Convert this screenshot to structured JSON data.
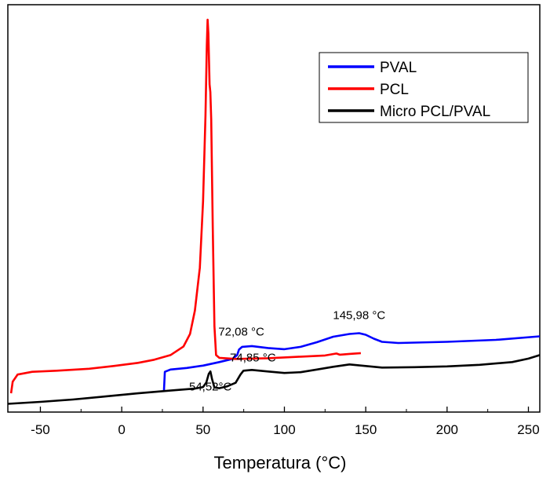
{
  "chart_data": {
    "type": "line",
    "xlabel": "Temperatura (°C)",
    "xlim": [
      -70,
      257
    ],
    "ylim": [
      0,
      100
    ],
    "x_ticks": [
      -50,
      0,
      50,
      100,
      150,
      200,
      250
    ],
    "x_tick_labels": [
      "-50",
      "0",
      "50",
      "100",
      "150",
      "200",
      "250"
    ],
    "y_ticks_labeled": false,
    "grid": false,
    "legend_position": "top-right",
    "series": [
      {
        "name": "PVAL",
        "color": "#0000ff",
        "points": [
          [
            26,
            3.6
          ],
          [
            26.5,
            8.3
          ],
          [
            30,
            8.9
          ],
          [
            40,
            9.3
          ],
          [
            50,
            9.9
          ],
          [
            60,
            10.8
          ],
          [
            68,
            11.6
          ],
          [
            71,
            12.6
          ],
          [
            72.08,
            14.0
          ],
          [
            74,
            14.7
          ],
          [
            80,
            14.9
          ],
          [
            90,
            14.4
          ],
          [
            100,
            14.1
          ],
          [
            110,
            14.7
          ],
          [
            120,
            15.9
          ],
          [
            130,
            17.3
          ],
          [
            140,
            18.0
          ],
          [
            145.98,
            18.2
          ],
          [
            150,
            17.8
          ],
          [
            155,
            16.8
          ],
          [
            160,
            16.0
          ],
          [
            170,
            15.7
          ],
          [
            200,
            16.0
          ],
          [
            230,
            16.5
          ],
          [
            257,
            17.4
          ]
        ]
      },
      {
        "name": "PCL",
        "color": "#ff0000",
        "points": [
          [
            -68,
            2.8
          ],
          [
            -67,
            5.8
          ],
          [
            -64,
            7.6
          ],
          [
            -55,
            8.3
          ],
          [
            -40,
            8.6
          ],
          [
            -20,
            9.1
          ],
          [
            -5,
            9.8
          ],
          [
            10,
            10.6
          ],
          [
            20,
            11.4
          ],
          [
            30,
            12.6
          ],
          [
            38,
            14.8
          ],
          [
            42,
            18.0
          ],
          [
            45,
            24.0
          ],
          [
            48,
            35.0
          ],
          [
            50,
            52.0
          ],
          [
            51.5,
            74.0
          ],
          [
            52.3,
            92.0
          ],
          [
            52.8,
            98.6
          ],
          [
            53.3,
            95.0
          ],
          [
            54,
            82.0
          ],
          [
            54.5,
            80.0
          ],
          [
            55,
            73.0
          ],
          [
            56,
            45.0
          ],
          [
            57,
            20.0
          ],
          [
            58,
            12.6
          ],
          [
            60,
            11.9
          ],
          [
            70,
            11.6
          ],
          [
            90,
            11.8
          ],
          [
            110,
            12.2
          ],
          [
            125,
            12.5
          ],
          [
            132,
            13.0
          ],
          [
            134,
            12.7
          ],
          [
            140,
            12.9
          ],
          [
            147,
            13.1
          ]
        ]
      },
      {
        "name": "Micro PCL/PVAL",
        "color": "#000000",
        "points": [
          [
            -70,
            0.1
          ],
          [
            -50,
            0.6
          ],
          [
            -30,
            1.2
          ],
          [
            -10,
            2.0
          ],
          [
            10,
            2.8
          ],
          [
            30,
            3.5
          ],
          [
            45,
            4.0
          ],
          [
            50,
            4.4
          ],
          [
            52,
            5.6
          ],
          [
            53.5,
            7.8
          ],
          [
            54.52,
            8.4
          ],
          [
            55.5,
            6.5
          ],
          [
            57,
            4.3
          ],
          [
            60,
            4.1
          ],
          [
            65,
            4.6
          ],
          [
            70,
            5.5
          ],
          [
            73,
            7.6
          ],
          [
            74.85,
            8.6
          ],
          [
            80,
            8.8
          ],
          [
            90,
            8.4
          ],
          [
            100,
            8.0
          ],
          [
            110,
            8.2
          ],
          [
            120,
            8.9
          ],
          [
            130,
            9.6
          ],
          [
            140,
            10.2
          ],
          [
            150,
            9.8
          ],
          [
            160,
            9.4
          ],
          [
            180,
            9.5
          ],
          [
            200,
            9.7
          ],
          [
            220,
            10.1
          ],
          [
            240,
            10.8
          ],
          [
            250,
            11.7
          ],
          [
            257,
            12.6
          ]
        ]
      }
    ],
    "annotations": [
      {
        "text": "72,08 °C",
        "series": "PVAL",
        "x": 72.08
      },
      {
        "text": "145,98 °C",
        "series": "PVAL",
        "x": 145.98
      },
      {
        "text": "74,85 °C",
        "series": "Micro PCL/PVAL",
        "x": 74.85
      },
      {
        "text": "54,52°C",
        "series": "Micro PCL/PVAL",
        "x": 54.52
      }
    ]
  }
}
